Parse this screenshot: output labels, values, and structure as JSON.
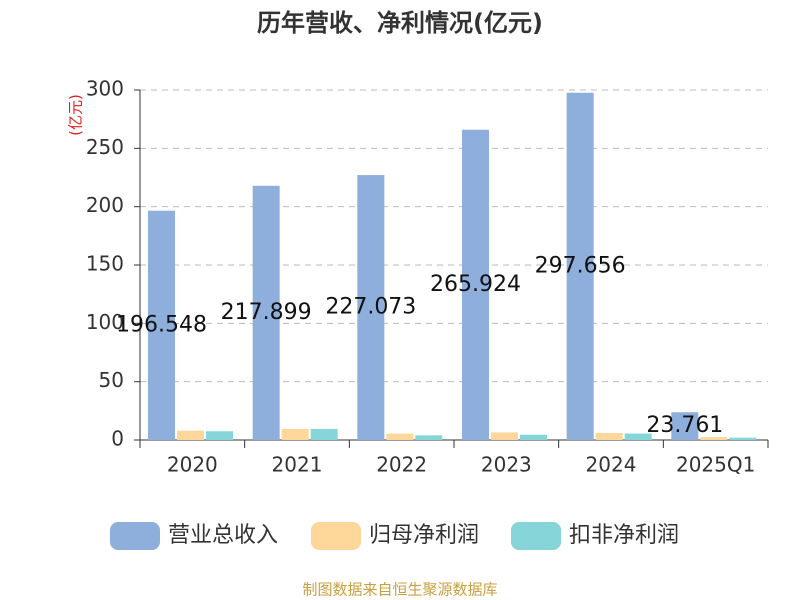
{
  "chart_data": {
    "type": "bar",
    "title": "历年营收、净利情况(亿元)",
    "y_label": "(亿元)",
    "categories": [
      "2020",
      "2021",
      "2022",
      "2023",
      "2024",
      "2025Q1"
    ],
    "series": [
      {
        "name": "营业总收入",
        "color": "#8eaedb",
        "values": [
          196.548,
          217.899,
          227.073,
          265.924,
          297.656,
          23.761
        ],
        "labels": true
      },
      {
        "name": "归母净利润",
        "color": "#fdd89a",
        "values": [
          8,
          9.5,
          5.5,
          6.5,
          6,
          2.5
        ]
      },
      {
        "name": "扣非净利润",
        "color": "#86d5d8",
        "values": [
          7.5,
          9.5,
          4,
          4.5,
          5.5,
          2
        ]
      }
    ],
    "ylim": [
      0,
      300
    ],
    "yticks": [
      0,
      50,
      100,
      150,
      200,
      250,
      300
    ],
    "grid": true,
    "source": "制图数据来自恒生聚源数据库"
  }
}
